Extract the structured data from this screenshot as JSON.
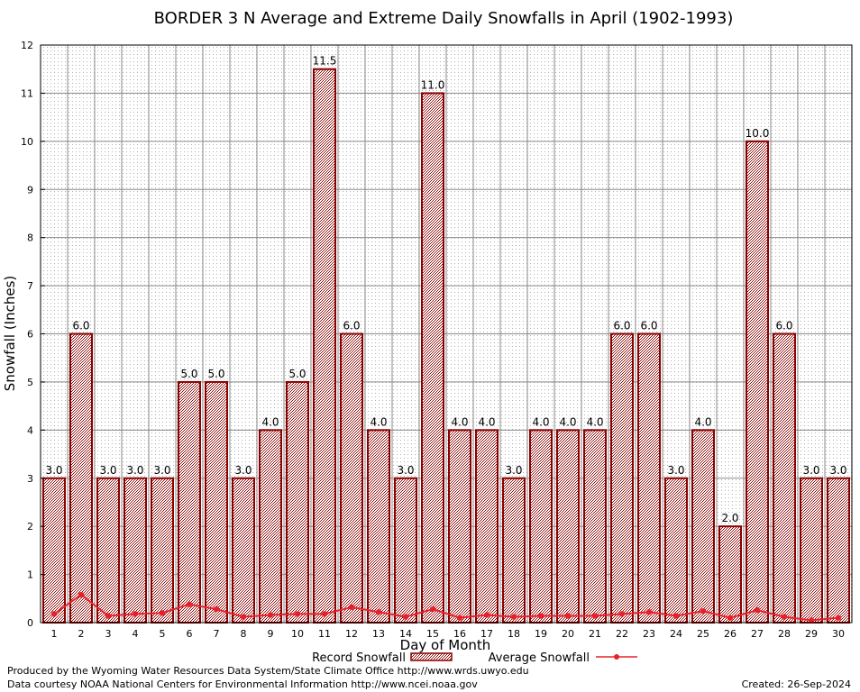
{
  "chart_data": {
    "type": "bar",
    "title": "BORDER 3 N Average and Extreme Daily Snowfalls in April (1902-1993)",
    "xlabel": "Day of Month",
    "ylabel": "Snowfall (Inches)",
    "ylim": [
      0,
      12
    ],
    "yticks": [
      "0",
      "1",
      "2",
      "3",
      "4",
      "5",
      "6",
      "7",
      "8",
      "9",
      "10",
      "11",
      "12"
    ],
    "categories": [
      "1",
      "2",
      "3",
      "4",
      "5",
      "6",
      "7",
      "8",
      "9",
      "10",
      "11",
      "12",
      "13",
      "14",
      "15",
      "16",
      "17",
      "18",
      "19",
      "20",
      "21",
      "22",
      "23",
      "24",
      "25",
      "26",
      "27",
      "28",
      "29",
      "30"
    ],
    "series": [
      {
        "name": "Record Snowfall",
        "kind": "bar",
        "color": "#8b0000",
        "values": [
          3.0,
          6.0,
          3.0,
          3.0,
          3.0,
          5.0,
          5.0,
          3.0,
          4.0,
          5.0,
          11.5,
          6.0,
          4.0,
          3.0,
          11.0,
          4.0,
          4.0,
          3.0,
          4.0,
          4.0,
          4.0,
          6.0,
          6.0,
          3.0,
          4.0,
          2.0,
          10.0,
          6.0,
          3.0,
          3.0
        ],
        "labels": [
          "3.0",
          "6.0",
          "3.0",
          "3.0",
          "3.0",
          "5.0",
          "5.0",
          "3.0",
          "4.0",
          "5.0",
          "11.5",
          "6.0",
          "4.0",
          "3.0",
          "11.0",
          "4.0",
          "4.0",
          "3.0",
          "4.0",
          "4.0",
          "4.0",
          "6.0",
          "6.0",
          "3.0",
          "4.0",
          "2.0",
          "10.0",
          "6.0",
          "3.0",
          "3.0"
        ]
      },
      {
        "name": "Average Snowfall",
        "kind": "line",
        "color": "#e8202a",
        "values": [
          0.18,
          0.58,
          0.14,
          0.18,
          0.2,
          0.38,
          0.28,
          0.12,
          0.16,
          0.18,
          0.18,
          0.32,
          0.22,
          0.12,
          0.28,
          0.1,
          0.16,
          0.12,
          0.14,
          0.14,
          0.14,
          0.18,
          0.22,
          0.14,
          0.24,
          0.1,
          0.26,
          0.12,
          0.05,
          0.1
        ]
      }
    ],
    "grid": true,
    "legend_position": "bottom-center"
  },
  "footer": {
    "produced_by": "Produced by the Wyoming Water Resources Data System/State Climate Office http://www.wrds.uwyo.edu",
    "data_courtesy": "Data courtesy NOAA National Centers for Environmental Information http://www.ncei.noaa.gov",
    "created": "Created:  26-Sep-2024"
  }
}
